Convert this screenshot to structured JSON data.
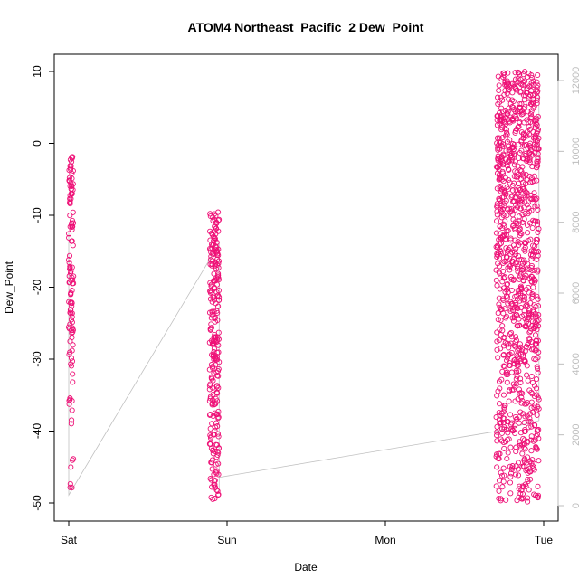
{
  "chart_data": {
    "type": "scatter",
    "title": "ATOM4 Northeast_Pacific_2 Dew_Point",
    "xlabel": "Date",
    "ylabel": "Dew_Point",
    "x_ticks": [
      "Sat",
      "Sun",
      "Mon",
      "Tue"
    ],
    "ylim": [
      -51,
      11
    ],
    "y_ticks": [
      -50,
      -40,
      -30,
      -20,
      -10,
      0,
      10
    ],
    "y2lim": [
      0,
      12000
    ],
    "y2_ticks": [
      0,
      2000,
      4000,
      6000,
      8000,
      10000,
      12000
    ],
    "x_range_days": [
      0,
      3
    ],
    "point_color": "#ee1177",
    "secondary_line_color": "#c0c0c0",
    "series": [
      {
        "values_summary": "Dew_Point observations",
        "clusters": [
          {
            "day_start": 0.0,
            "day_end": 0.03,
            "ymin": -50,
            "ymax": -1.8
          },
          {
            "day_start": 0.89,
            "day_end": 0.95,
            "ymin": -50,
            "ymax": -9.5
          },
          {
            "day_start": 2.7,
            "day_end": 2.97,
            "ymin": -50,
            "ymax": 10
          }
        ]
      }
    ],
    "secondary_series": {
      "points": [
        {
          "day": 0.0,
          "value": 7450
        },
        {
          "day": 0.0,
          "value": 7200
        },
        {
          "day": 0.0,
          "value": 7700
        },
        {
          "day": 0.0,
          "value": 300
        },
        {
          "day": 0.95,
          "value": 7400
        },
        {
          "day": 0.95,
          "value": 7300
        },
        {
          "day": 0.95,
          "value": 500
        },
        {
          "day": 0.95,
          "value": 800
        },
        {
          "day": 2.7,
          "value": 2100
        },
        {
          "day": 2.97,
          "value": 2400
        },
        {
          "day": 2.97,
          "value": 11800
        },
        {
          "day": 2.97,
          "value": 3000
        }
      ]
    }
  }
}
